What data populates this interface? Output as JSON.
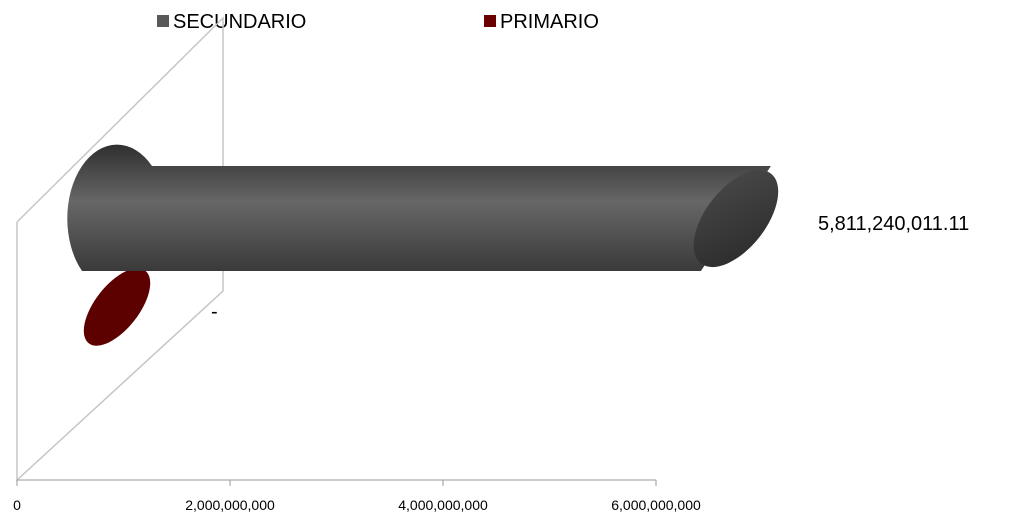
{
  "chart_data": {
    "type": "bar",
    "orientation": "horizontal",
    "style": "3d-cylinder",
    "categories": [
      "PRIMARIO",
      "SECUNDARIO"
    ],
    "series": [
      {
        "name": "SECUNDARIO",
        "color": "#595959",
        "values": [
          null,
          5811240011.11
        ]
      },
      {
        "name": "PRIMARIO",
        "color": "#6b0000",
        "values": [
          0,
          null
        ]
      }
    ],
    "data_labels": [
      "-",
      "5,811,240,011.11"
    ],
    "xlim": [
      0,
      6000000000
    ],
    "x_ticks": [
      0,
      2000000000,
      4000000000,
      6000000000
    ],
    "x_tick_labels": [
      "0",
      "2,000,000,000",
      "4,000,000,000",
      "6,000,000,000"
    ],
    "legend": {
      "position": "top",
      "items": [
        "SECUNDARIO",
        "PRIMARIO"
      ]
    },
    "grid": false
  }
}
